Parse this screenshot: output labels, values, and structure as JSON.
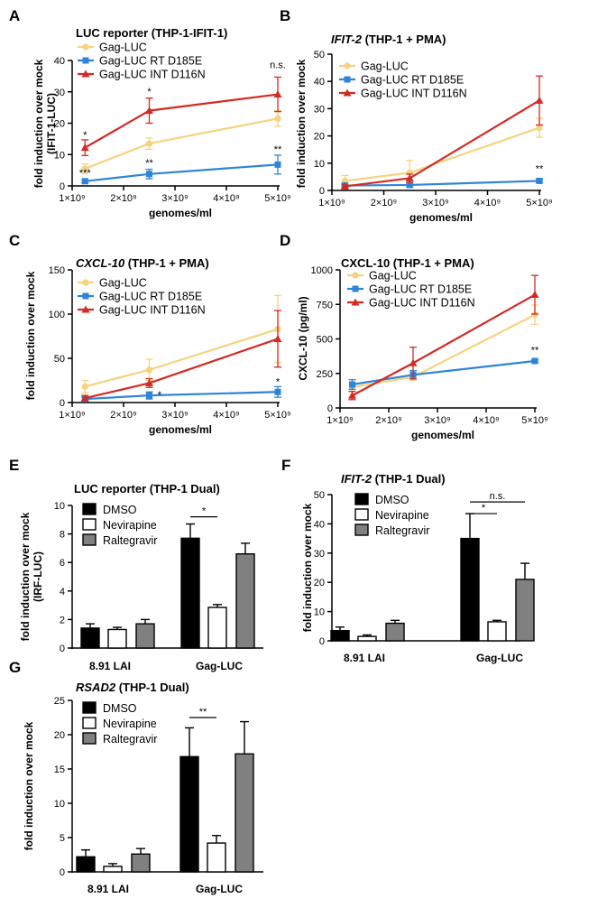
{
  "chart_data": [
    {
      "panel": "A",
      "type": "line",
      "title_italic": "",
      "title": "LUC reporter (THP-1-IFIT-1)",
      "ylabel": "fold induction over mock",
      "ylabel2": "(IFIT-1-LUC)",
      "xlabel": "genomes/ml",
      "ylim": [
        0,
        40
      ],
      "yticks": [
        "0",
        "10",
        "20",
        "30",
        "40"
      ],
      "ytick_values": [
        0,
        10,
        20,
        30,
        40
      ],
      "xlim": [
        1000000000,
        5000000000
      ],
      "xticks": [
        "1×10⁹",
        "2×10⁹",
        "3×10⁹",
        "4×10⁹",
        "5×10⁹"
      ],
      "xtick_values": [
        1000000000,
        2000000000,
        3000000000,
        4000000000,
        5000000000
      ],
      "series": [
        {
          "name": "Gag-LUC",
          "color": "#f5d37f",
          "marker": "circle",
          "x": [
            1250000000,
            2500000000,
            5000000000
          ],
          "values": [
            5.5,
            13.5,
            21.5
          ],
          "errors": [
            1.5,
            1.8,
            2.5
          ]
        },
        {
          "name": "Gag-LUC RT D185E",
          "color": "#2e85d8",
          "marker": "square",
          "x": [
            1250000000,
            2500000000,
            5000000000
          ],
          "values": [
            1.5,
            3.8,
            6.8
          ],
          "errors": [
            0.5,
            1.5,
            3.0
          ]
        },
        {
          "name": "Gag-LUC INT D116N",
          "color": "#d42a24",
          "marker": "triangle",
          "x": [
            1250000000,
            2500000000,
            5000000000
          ],
          "values": [
            12.2,
            24.0,
            29.2
          ],
          "errors": [
            2.5,
            4.0,
            5.5
          ]
        }
      ],
      "annotations": [
        {
          "text": "*",
          "x": 1250000000,
          "y": 15.2
        },
        {
          "text": "***",
          "x": 1250000000,
          "y": 3.2
        },
        {
          "text": "*",
          "x": 2500000000,
          "y": 29.0
        },
        {
          "text": "**",
          "x": 2500000000,
          "y": 6.3
        },
        {
          "text": "n.s.",
          "x": 5000000000,
          "y": 37.5
        },
        {
          "text": "**",
          "x": 5000000000,
          "y": 10.7
        }
      ]
    },
    {
      "panel": "B",
      "type": "line",
      "title_italic": "IFIT-2",
      "title": " (THP-1 + PMA)",
      "ylabel": "fold induction over mock",
      "ylabel2": "",
      "xlabel": "genomes/ml",
      "ylim": [
        0,
        50
      ],
      "yticks": [
        "0",
        "10",
        "20",
        "30",
        "40",
        "50"
      ],
      "ytick_values": [
        0,
        10,
        20,
        30,
        40,
        50
      ],
      "xlim": [
        1000000000,
        5000000000
      ],
      "xticks": [
        "1×10⁹",
        "2×10⁹",
        "3×10⁹",
        "4×10⁹",
        "5×10⁹"
      ],
      "xtick_values": [
        1000000000,
        2000000000,
        3000000000,
        4000000000,
        5000000000
      ],
      "series": [
        {
          "name": "Gag-LUC",
          "color": "#f5d37f",
          "marker": "circle",
          "x": [
            1250000000,
            2500000000,
            5000000000
          ],
          "values": [
            3.5,
            6.5,
            23.0
          ],
          "errors": [
            2.0,
            4.5,
            3.5
          ]
        },
        {
          "name": "Gag-LUC RT D185E",
          "color": "#2e85d8",
          "marker": "square",
          "x": [
            1250000000,
            2500000000,
            5000000000
          ],
          "values": [
            1.8,
            2.0,
            3.5
          ],
          "errors": [
            0.8,
            0.8,
            0.6
          ]
        },
        {
          "name": "Gag-LUC INT D116N",
          "color": "#d42a24",
          "marker": "triangle",
          "x": [
            1250000000,
            2500000000,
            5000000000
          ],
          "values": [
            1.5,
            4.5,
            33.0
          ],
          "errors": [
            0.5,
            1.5,
            9.0
          ]
        }
      ],
      "annotations": [
        {
          "text": "**",
          "x": 5000000000,
          "y": 6.8
        }
      ]
    },
    {
      "panel": "C",
      "type": "line",
      "title_italic": "CXCL-10",
      "title": " (THP-1 + PMA)",
      "ylabel": "fold induction over mock",
      "ylabel2": "",
      "xlabel": "genomes/ml",
      "ylim": [
        0,
        150
      ],
      "yticks": [
        "0",
        "50",
        "100",
        "150"
      ],
      "ytick_values": [
        0,
        50,
        100,
        150
      ],
      "xlim": [
        1000000000,
        5000000000
      ],
      "xticks": [
        "1×10⁹",
        "2×10⁹",
        "3×10⁹",
        "4×10⁹",
        "5×10⁹"
      ],
      "xtick_values": [
        1000000000,
        2000000000,
        3000000000,
        4000000000,
        5000000000
      ],
      "series": [
        {
          "name": "Gag-LUC",
          "color": "#f5d37f",
          "marker": "circle",
          "x": [
            1250000000,
            2500000000,
            5000000000
          ],
          "values": [
            18,
            37,
            83
          ],
          "errors": [
            7,
            12,
            38
          ]
        },
        {
          "name": "Gag-LUC RT D185E",
          "color": "#2e85d8",
          "marker": "square",
          "x": [
            1250000000,
            2500000000,
            5000000000
          ],
          "values": [
            4,
            8,
            12
          ],
          "errors": [
            2,
            4,
            6
          ]
        },
        {
          "name": "Gag-LUC INT D116N",
          "color": "#d42a24",
          "marker": "triangle",
          "x": [
            1250000000,
            2500000000,
            5000000000
          ],
          "values": [
            5,
            22,
            72
          ],
          "errors": [
            3,
            5,
            32
          ]
        }
      ],
      "annotations": [
        {
          "text": "*",
          "x": 2700000000,
          "y": 5
        },
        {
          "text": "*",
          "x": 5000000000,
          "y": 20
        }
      ]
    },
    {
      "panel": "D",
      "type": "line",
      "title_italic": "",
      "title": "CXCL-10 (THP-1 + PMA)",
      "ylabel": "CXCL-10 (pg/ml)",
      "ylabel2": "",
      "xlabel": "genomes/ml",
      "ylim": [
        0,
        1000
      ],
      "yticks": [
        "0",
        "250",
        "500",
        "750",
        "1000"
      ],
      "ytick_values": [
        0,
        250,
        500,
        750,
        1000
      ],
      "xlim": [
        1000000000,
        5000000000
      ],
      "xticks": [
        "1×10⁹",
        "2×10⁹",
        "3×10⁹",
        "4×10⁹",
        "5×10⁹"
      ],
      "xtick_values": [
        1000000000,
        2000000000,
        3000000000,
        4000000000,
        5000000000
      ],
      "series": [
        {
          "name": "Gag-LUC",
          "color": "#f5d37f",
          "marker": "circle",
          "x": [
            1250000000,
            2500000000,
            5000000000
          ],
          "values": [
            150,
            225,
            675
          ],
          "errors": [
            30,
            25,
            70
          ]
        },
        {
          "name": "Gag-LUC RT D185E",
          "color": "#2e85d8",
          "marker": "square",
          "x": [
            1250000000,
            2500000000,
            5000000000
          ],
          "values": [
            170,
            240,
            340
          ],
          "errors": [
            35,
            30,
            8
          ]
        },
        {
          "name": "Gag-LUC INT D116N",
          "color": "#d42a24",
          "marker": "triangle",
          "x": [
            1250000000,
            2500000000,
            5000000000
          ],
          "values": [
            90,
            325,
            820
          ],
          "errors": [
            30,
            115,
            140
          ]
        }
      ],
      "annotations": [
        {
          "text": "**",
          "x": 5000000000,
          "y": 395
        }
      ]
    },
    {
      "panel": "E",
      "type": "bar",
      "title_italic": "",
      "title": "LUC reporter (THP-1 Dual)",
      "ylabel": "fold induction over mock",
      "ylabel2": "(IRF-LUC)",
      "ylim": [
        0,
        10
      ],
      "yticks": [
        "0",
        "2",
        "4",
        "6",
        "8",
        "10"
      ],
      "ytick_values": [
        0,
        2,
        4,
        6,
        8,
        10
      ],
      "categories": [
        "8.91 LAI",
        "Gag-LUC"
      ],
      "series": [
        {
          "name": "DMSO",
          "color": "#000000",
          "values": [
            1.4,
            7.7
          ],
          "errors": [
            0.3,
            1.0
          ]
        },
        {
          "name": "Nevirapine",
          "color": "#ffffff",
          "values": [
            1.3,
            2.85
          ],
          "errors": [
            0.15,
            0.2
          ]
        },
        {
          "name": "Raltegravir",
          "color": "#808080",
          "values": [
            1.7,
            6.6
          ],
          "errors": [
            0.3,
            0.75
          ]
        }
      ],
      "brackets": [
        {
          "text": "*",
          "category": 1,
          "from_series": 0,
          "to_series": 1,
          "y": 9.2
        }
      ]
    },
    {
      "panel": "F",
      "type": "bar",
      "title_italic": "IFIT-2",
      "title": " (THP-1 Dual)",
      "ylabel": "fold induction over mock",
      "ylabel2": "",
      "ylim": [
        0,
        50
      ],
      "yticks": [
        "0",
        "10",
        "20",
        "30",
        "40",
        "50"
      ],
      "ytick_values": [
        0,
        10,
        20,
        30,
        40,
        50
      ],
      "categories": [
        "8.91 LAI",
        "Gag-LUC"
      ],
      "series": [
        {
          "name": "DMSO",
          "color": "#000000",
          "values": [
            3.5,
            35.0
          ],
          "errors": [
            1.2,
            8.5
          ]
        },
        {
          "name": "Nevirapine",
          "color": "#ffffff",
          "values": [
            1.5,
            6.5
          ],
          "errors": [
            0.5,
            0.5
          ]
        },
        {
          "name": "Raltegravir",
          "color": "#808080",
          "values": [
            6.0,
            21.0
          ],
          "errors": [
            1.0,
            5.5
          ]
        }
      ],
      "brackets": [
        {
          "text": "*",
          "category": 1,
          "from_series": 0,
          "to_series": 1,
          "y": 43.5
        },
        {
          "text": "n.s.",
          "category": 1,
          "from_series": 0,
          "to_series": 2,
          "y": 47.5
        }
      ]
    },
    {
      "panel": "G",
      "type": "bar",
      "title_italic": "RSAD2",
      "title": " (THP-1 Dual)",
      "ylabel": "fold induction over mock",
      "ylabel2": "",
      "ylim": [
        0,
        25
      ],
      "yticks": [
        "0",
        "5",
        "10",
        "15",
        "20",
        "25"
      ],
      "ytick_values": [
        0,
        5,
        10,
        15,
        20,
        25
      ],
      "categories": [
        "8.91 LAI",
        "Gag-LUC"
      ],
      "series": [
        {
          "name": "DMSO",
          "color": "#000000",
          "values": [
            2.2,
            16.8
          ],
          "errors": [
            1.0,
            4.2
          ]
        },
        {
          "name": "Nevirapine",
          "color": "#ffffff",
          "values": [
            0.8,
            4.2
          ],
          "errors": [
            0.4,
            1.1
          ]
        },
        {
          "name": "Raltegravir",
          "color": "#808080",
          "values": [
            2.6,
            17.2
          ],
          "errors": [
            0.8,
            4.7
          ]
        }
      ],
      "brackets": [
        {
          "text": "**",
          "category": 1,
          "from_series": 0,
          "to_series": 1,
          "y": 22.5
        }
      ]
    }
  ]
}
